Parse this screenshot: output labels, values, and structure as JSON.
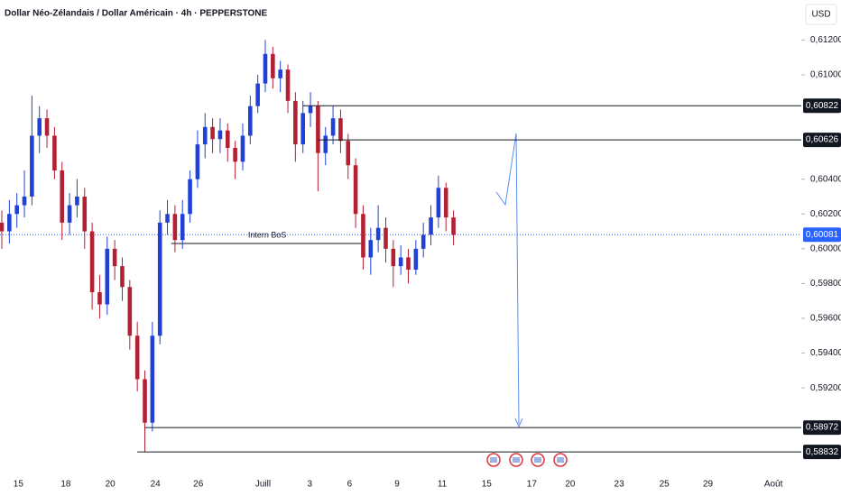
{
  "chart_data": {
    "type": "candlestick",
    "title": "Dollar Néo-Zélandais / Dollar Américain · 4h · PEPPERSTONE",
    "currency": "USD",
    "up_color": "#2141d6",
    "down_color": "#b22033",
    "candles": [
      [
        0.6015,
        0.6022,
        0.6,
        0.601
      ],
      [
        0.601,
        0.6028,
        0.6003,
        0.602
      ],
      [
        0.602,
        0.6032,
        0.6012,
        0.6025
      ],
      [
        0.6025,
        0.6045,
        0.6018,
        0.603
      ],
      [
        0.603,
        0.6088,
        0.6025,
        0.6065
      ],
      [
        0.6065,
        0.6082,
        0.6055,
        0.6075
      ],
      [
        0.6075,
        0.608,
        0.6058,
        0.6065
      ],
      [
        0.6065,
        0.607,
        0.604,
        0.6045
      ],
      [
        0.6045,
        0.605,
        0.6005,
        0.6015
      ],
      [
        0.6015,
        0.6032,
        0.6008,
        0.6025
      ],
      [
        0.6025,
        0.604,
        0.6018,
        0.603
      ],
      [
        0.603,
        0.6035,
        0.6,
        0.601
      ],
      [
        0.601,
        0.6015,
        0.5965,
        0.5975
      ],
      [
        0.5975,
        0.5985,
        0.596,
        0.5968
      ],
      [
        0.5968,
        0.6007,
        0.5962,
        0.6
      ],
      [
        0.6,
        0.6005,
        0.5982,
        0.599
      ],
      [
        0.599,
        0.5995,
        0.597,
        0.5978
      ],
      [
        0.5978,
        0.5982,
        0.5942,
        0.595
      ],
      [
        0.595,
        0.5958,
        0.5918,
        0.5925
      ],
      [
        0.5925,
        0.593,
        0.58832,
        0.59
      ],
      [
        0.59,
        0.5958,
        0.5895,
        0.595
      ],
      [
        0.595,
        0.6022,
        0.5945,
        0.6015
      ],
      [
        0.6015,
        0.6028,
        0.6008,
        0.602
      ],
      [
        0.602,
        0.6025,
        0.5998,
        0.6005
      ],
      [
        0.6005,
        0.6028,
        0.6,
        0.602
      ],
      [
        0.602,
        0.6045,
        0.6015,
        0.604
      ],
      [
        0.604,
        0.6068,
        0.6035,
        0.606
      ],
      [
        0.606,
        0.6078,
        0.6052,
        0.607
      ],
      [
        0.607,
        0.6075,
        0.6055,
        0.6063
      ],
      [
        0.6063,
        0.6075,
        0.6055,
        0.6068
      ],
      [
        0.6068,
        0.6072,
        0.605,
        0.6058
      ],
      [
        0.6058,
        0.6062,
        0.604,
        0.605
      ],
      [
        0.605,
        0.6072,
        0.6045,
        0.6065
      ],
      [
        0.6065,
        0.6088,
        0.606,
        0.6082
      ],
      [
        0.6082,
        0.61,
        0.6078,
        0.6095
      ],
      [
        0.6095,
        0.612,
        0.609,
        0.6112
      ],
      [
        0.6112,
        0.6116,
        0.6092,
        0.6098
      ],
      [
        0.6098,
        0.6108,
        0.609,
        0.6103
      ],
      [
        0.6103,
        0.6106,
        0.6078,
        0.6085
      ],
      [
        0.6085,
        0.609,
        0.605,
        0.606
      ],
      [
        0.606,
        0.6085,
        0.6055,
        0.6078
      ],
      [
        0.6078,
        0.609,
        0.607,
        0.6082
      ],
      [
        0.6082,
        0.6085,
        0.6033,
        0.6055
      ],
      [
        0.6055,
        0.607,
        0.6048,
        0.6065
      ],
      [
        0.6065,
        0.6082,
        0.606,
        0.6075
      ],
      [
        0.6075,
        0.608,
        0.6055,
        0.6062
      ],
      [
        0.6062,
        0.6066,
        0.604,
        0.6048
      ],
      [
        0.6048,
        0.6052,
        0.6012,
        0.602
      ],
      [
        0.602,
        0.6025,
        0.5988,
        0.5995
      ],
      [
        0.5995,
        0.6012,
        0.5985,
        0.6005
      ],
      [
        0.6005,
        0.6025,
        0.5998,
        0.6012
      ],
      [
        0.6012,
        0.6018,
        0.5992,
        0.6
      ],
      [
        0.6,
        0.6005,
        0.5978,
        0.599
      ],
      [
        0.599,
        0.6002,
        0.5985,
        0.5995
      ],
      [
        0.5995,
        0.6,
        0.598,
        0.5988
      ],
      [
        0.5988,
        0.6005,
        0.5985,
        0.6
      ],
      [
        0.6,
        0.6015,
        0.5995,
        0.6008
      ],
      [
        0.6008,
        0.6025,
        0.6002,
        0.6018
      ],
      [
        0.6018,
        0.6042,
        0.6012,
        0.6035
      ],
      [
        0.6035,
        0.6038,
        0.601,
        0.6018
      ],
      [
        0.6018,
        0.6022,
        0.6002,
        0.6008
      ]
    ],
    "xlim": [
      -0.24,
      106.2
    ],
    "xticks": [
      {
        "value": 2.2,
        "label": "15"
      },
      {
        "value": 8.5,
        "label": "18"
      },
      {
        "value": 14.4,
        "label": "20"
      },
      {
        "value": 20.4,
        "label": "24"
      },
      {
        "value": 26.1,
        "label": "26"
      },
      {
        "value": 34.7,
        "label": "Juill"
      },
      {
        "value": 40.9,
        "label": "3"
      },
      {
        "value": 46.2,
        "label": "6"
      },
      {
        "value": 52.5,
        "label": "9"
      },
      {
        "value": 58.5,
        "label": "11"
      },
      {
        "value": 64.4,
        "label": "15"
      },
      {
        "value": 70.4,
        "label": "17"
      },
      {
        "value": 75.5,
        "label": "20"
      },
      {
        "value": 82,
        "label": "23"
      },
      {
        "value": 88,
        "label": "25"
      },
      {
        "value": 93.8,
        "label": "29"
      },
      {
        "value": 102.5,
        "label": "Août"
      }
    ],
    "ylim": [
      0.5876,
      0.6143
    ],
    "yticks": [
      {
        "value": 0.612,
        "label": "0,61200"
      },
      {
        "value": 0.61,
        "label": "0,61000"
      },
      {
        "value": 0.604,
        "label": "0,60400"
      },
      {
        "value": 0.602,
        "label": "0,60200"
      },
      {
        "value": 0.6,
        "label": "0,60000"
      },
      {
        "value": 0.598,
        "label": "0,59800"
      },
      {
        "value": 0.596,
        "label": "0,59600"
      },
      {
        "value": 0.594,
        "label": "0,59400"
      },
      {
        "value": 0.592,
        "label": "0,59200"
      }
    ],
    "grid": false,
    "levels": [
      {
        "value": 0.60822,
        "label": "0,60822",
        "start": 40
      },
      {
        "value": 0.60626,
        "label": "0,60626",
        "start": 42
      },
      {
        "value": 0.58972,
        "label": "0,58972",
        "start": 19
      },
      {
        "value": 0.58832,
        "label": "0,58832",
        "start": 18
      }
    ],
    "current_price": {
      "value": 0.60081,
      "label": "0,60081",
      "color": "#2962ff"
    },
    "annotation": {
      "text": "Intern BoS",
      "value": 0.6003,
      "start": 22.5,
      "end": 48
    }
  }
}
